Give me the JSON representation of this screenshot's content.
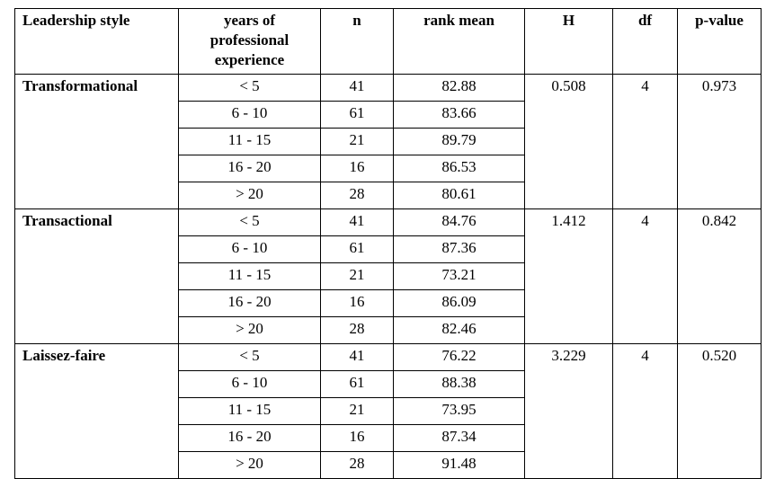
{
  "table": {
    "header": [
      "Leadership style",
      "years of professional experience",
      "n",
      "rank mean",
      "H",
      "df",
      "p-value"
    ],
    "groups": [
      {
        "style": "Transformational",
        "H": 0.508,
        "df": 4,
        "p": 0.973,
        "rows": [
          [
            "< 5",
            41,
            82.88
          ],
          [
            "6 - 10",
            61,
            83.66
          ],
          [
            "11 - 15",
            21,
            89.79
          ],
          [
            "16 - 20",
            16,
            86.53
          ],
          [
            "> 20",
            28,
            80.61
          ]
        ]
      },
      {
        "style": "Transactional",
        "H": 1.412,
        "df": 4,
        "p": 0.842,
        "rows": [
          [
            "< 5",
            41,
            84.76
          ],
          [
            "6 - 10",
            61,
            87.36
          ],
          [
            "11 - 15",
            21,
            73.21
          ],
          [
            "16 - 20",
            16,
            86.09
          ],
          [
            "> 20",
            28,
            82.46
          ]
        ]
      },
      {
        "style": "Laissez-faire",
        "H": 3.229,
        "df": 4,
        "p": "0.520",
        "rows": [
          [
            "< 5",
            41,
            76.22
          ],
          [
            "6 - 10",
            61,
            88.38
          ],
          [
            "11 - 15",
            21,
            73.95
          ],
          [
            "16 - 20",
            16,
            87.34
          ],
          [
            "> 20",
            28,
            91.48
          ]
        ]
      }
    ]
  }
}
